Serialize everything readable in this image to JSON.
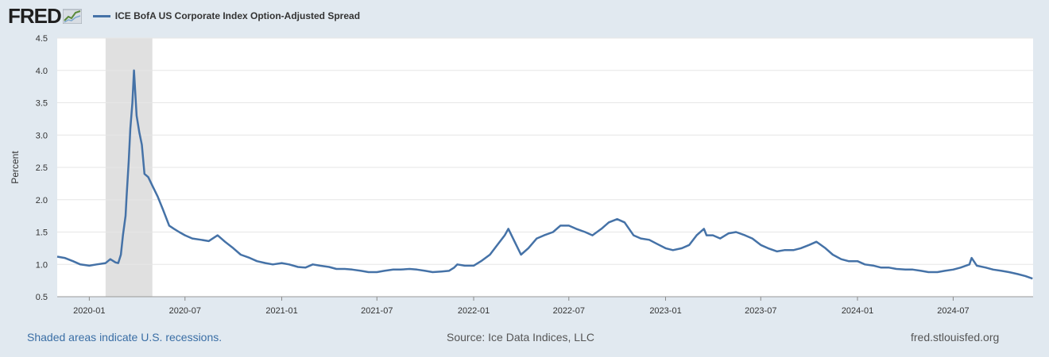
{
  "logo": {
    "text": "FRED",
    "icon": "fred-line-graph-icon"
  },
  "colors": {
    "series": "#4572a7",
    "recession": "#e0e0e0",
    "background": "#e1e9f0",
    "plot": "#ffffff",
    "grid": "#e6e6e6"
  },
  "footer": {
    "recession_note": "Shaded areas indicate U.S. recessions.",
    "source": "Source: Ice Data Indices, LLC",
    "site": "fred.stlouisfed.org"
  },
  "chart_data": {
    "type": "line",
    "ylabel": "Percent",
    "ylim": [
      0.5,
      4.5
    ],
    "yticks": [
      "0.5",
      "1.0",
      "1.5",
      "2.0",
      "2.5",
      "3.0",
      "3.5",
      "4.0",
      "4.5"
    ],
    "xlim": [
      "2019-11-01",
      "2024-11-30"
    ],
    "xticks": [
      "2020-01",
      "2020-07",
      "2021-01",
      "2021-07",
      "2022-01",
      "2022-07",
      "2023-01",
      "2023-07",
      "2024-01",
      "2024-07"
    ],
    "grid": "horizontal",
    "legend": "top-left",
    "recessions": [
      {
        "start": "2020-02-01",
        "end": "2020-04-30"
      }
    ],
    "series": [
      {
        "name": "ICE BofA US Corporate Index Option-Adjusted Spread",
        "x": [
          "2019-11-01",
          "2019-11-15",
          "2019-12-01",
          "2019-12-15",
          "2020-01-01",
          "2020-01-15",
          "2020-02-01",
          "2020-02-10",
          "2020-02-20",
          "2020-02-25",
          "2020-03-01",
          "2020-03-05",
          "2020-03-10",
          "2020-03-12",
          "2020-03-16",
          "2020-03-19",
          "2020-03-23",
          "2020-03-26",
          "2020-03-31",
          "2020-04-05",
          "2020-04-10",
          "2020-04-15",
          "2020-04-22",
          "2020-05-01",
          "2020-05-10",
          "2020-05-20",
          "2020-06-01",
          "2020-06-10",
          "2020-06-20",
          "2020-07-01",
          "2020-07-15",
          "2020-08-01",
          "2020-08-15",
          "2020-09-01",
          "2020-09-15",
          "2020-10-01",
          "2020-10-15",
          "2020-11-01",
          "2020-11-15",
          "2020-12-01",
          "2020-12-15",
          "2021-01-01",
          "2021-01-15",
          "2021-02-01",
          "2021-02-15",
          "2021-03-01",
          "2021-03-15",
          "2021-04-01",
          "2021-04-15",
          "2021-05-01",
          "2021-05-15",
          "2021-06-01",
          "2021-06-15",
          "2021-07-01",
          "2021-07-15",
          "2021-08-01",
          "2021-08-15",
          "2021-09-01",
          "2021-09-15",
          "2021-10-01",
          "2021-10-15",
          "2021-11-01",
          "2021-11-15",
          "2021-11-25",
          "2021-12-01",
          "2021-12-15",
          "2022-01-01",
          "2022-01-15",
          "2022-02-01",
          "2022-02-15",
          "2022-03-01",
          "2022-03-08",
          "2022-03-20",
          "2022-04-01",
          "2022-04-15",
          "2022-05-01",
          "2022-05-15",
          "2022-06-01",
          "2022-06-15",
          "2022-07-01",
          "2022-07-15",
          "2022-08-01",
          "2022-08-15",
          "2022-09-01",
          "2022-09-15",
          "2022-10-01",
          "2022-10-15",
          "2022-11-01",
          "2022-11-15",
          "2022-12-01",
          "2022-12-15",
          "2023-01-01",
          "2023-01-15",
          "2023-02-01",
          "2023-02-15",
          "2023-03-01",
          "2023-03-15",
          "2023-03-20",
          "2023-04-01",
          "2023-04-15",
          "2023-05-01",
          "2023-05-15",
          "2023-06-01",
          "2023-06-15",
          "2023-07-01",
          "2023-07-15",
          "2023-08-01",
          "2023-08-15",
          "2023-09-01",
          "2023-09-15",
          "2023-10-01",
          "2023-10-15",
          "2023-11-01",
          "2023-11-15",
          "2023-12-01",
          "2023-12-15",
          "2024-01-01",
          "2024-01-15",
          "2024-02-01",
          "2024-02-15",
          "2024-03-01",
          "2024-03-15",
          "2024-04-01",
          "2024-04-15",
          "2024-05-01",
          "2024-05-15",
          "2024-06-01",
          "2024-06-15",
          "2024-07-01",
          "2024-07-15",
          "2024-08-01",
          "2024-08-05",
          "2024-08-15",
          "2024-09-01",
          "2024-09-15",
          "2024-10-01",
          "2024-10-15",
          "2024-11-01",
          "2024-11-15",
          "2024-11-29"
        ],
        "values": [
          1.12,
          1.1,
          1.05,
          1.0,
          0.98,
          1.0,
          1.02,
          1.08,
          1.03,
          1.02,
          1.15,
          1.45,
          1.75,
          2.05,
          2.6,
          3.1,
          3.5,
          4.0,
          3.3,
          3.05,
          2.85,
          2.4,
          2.35,
          2.2,
          2.05,
          1.85,
          1.6,
          1.55,
          1.5,
          1.45,
          1.4,
          1.38,
          1.36,
          1.45,
          1.35,
          1.25,
          1.15,
          1.1,
          1.05,
          1.02,
          1.0,
          1.02,
          1.0,
          0.96,
          0.95,
          1.0,
          0.98,
          0.96,
          0.93,
          0.93,
          0.92,
          0.9,
          0.88,
          0.88,
          0.9,
          0.92,
          0.92,
          0.93,
          0.92,
          0.9,
          0.88,
          0.89,
          0.9,
          0.95,
          1.0,
          0.98,
          0.98,
          1.05,
          1.15,
          1.3,
          1.45,
          1.55,
          1.35,
          1.15,
          1.25,
          1.4,
          1.45,
          1.5,
          1.6,
          1.6,
          1.55,
          1.5,
          1.45,
          1.55,
          1.65,
          1.7,
          1.65,
          1.45,
          1.4,
          1.38,
          1.32,
          1.25,
          1.22,
          1.25,
          1.3,
          1.45,
          1.55,
          1.45,
          1.45,
          1.4,
          1.48,
          1.5,
          1.45,
          1.4,
          1.3,
          1.25,
          1.2,
          1.22,
          1.22,
          1.25,
          1.3,
          1.35,
          1.25,
          1.15,
          1.08,
          1.05,
          1.05,
          1.0,
          0.98,
          0.95,
          0.95,
          0.93,
          0.92,
          0.92,
          0.9,
          0.88,
          0.88,
          0.9,
          0.92,
          0.95,
          1.0,
          1.1,
          0.98,
          0.95,
          0.92,
          0.9,
          0.88,
          0.85,
          0.82,
          0.78
        ]
      }
    ]
  }
}
